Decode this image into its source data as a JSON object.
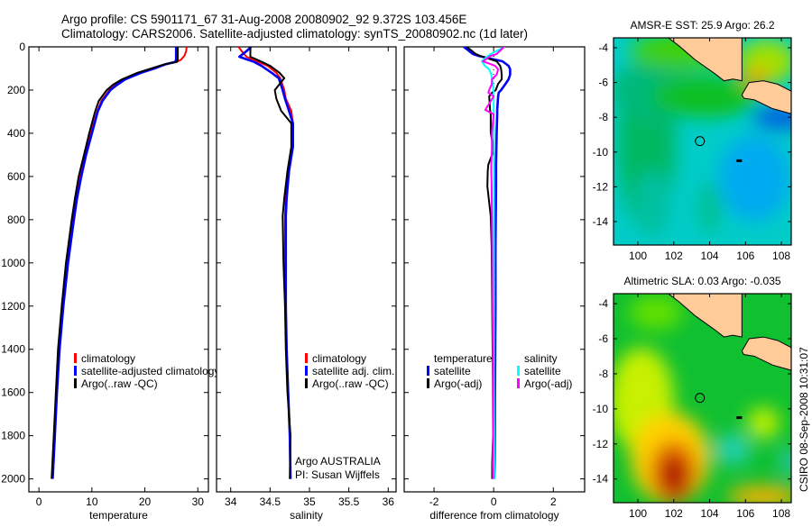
{
  "title_lines": [
    "Argo profile: CS 5901171_67 31-Aug-2008 20080902_92 9.372S 103.456E",
    "Climatology: CARS2006. Satellite-adjusted climatology: synTS_20080902.nc (1d later)"
  ],
  "side_stamp": "CSIRO 08-Sep-2008 10:31:07",
  "credit": [
    "Argo AUSTRALIA",
    "PI: Susan Wijffels"
  ],
  "chart_data": [
    {
      "type": "line",
      "id": "temperature",
      "xlabel": "temperature",
      "ylabel": "",
      "xlim": [
        -1.9,
        32
      ],
      "ylim": [
        0,
        2060
      ],
      "y_reversed": true,
      "xticks": [
        0,
        10,
        20,
        30
      ],
      "yticks": [
        0,
        200,
        400,
        600,
        800,
        1000,
        1200,
        1400,
        1600,
        1800,
        2000
      ],
      "show_ytick_labels": true,
      "depth": [
        0,
        20,
        40,
        60,
        70,
        80,
        100,
        120,
        150,
        175,
        200,
        250,
        300,
        400,
        500,
        600,
        700,
        800,
        1000,
        1200,
        1400,
        1600,
        1800,
        2000
      ],
      "series": [
        {
          "name": "climatology",
          "color": "#ff0000",
          "values": [
            27.9,
            27.8,
            27.5,
            26.8,
            26,
            24,
            21.5,
            19,
            16,
            14.5,
            13.3,
            11.8,
            11,
            9.8,
            8.7,
            7.8,
            7,
            6.4,
            5.3,
            4.4,
            3.7,
            3.3,
            2.9,
            2.6
          ]
        },
        {
          "name": "satellite-adjusted climatology",
          "color": "#0000ff",
          "values": [
            25.9,
            25.9,
            25.9,
            25.9,
            25.7,
            24,
            21.8,
            19.3,
            16.3,
            14.8,
            13.5,
            12,
            11.1,
            10,
            8.9,
            8,
            7.2,
            6.6,
            5.5,
            4.6,
            3.9,
            3.4,
            3.0,
            2.6
          ]
        },
        {
          "name": "Argo(..raw -QC)",
          "color": "#000000",
          "values": [
            26.2,
            26.2,
            26.2,
            26.2,
            26.0,
            23.8,
            21.2,
            18.6,
            15.7,
            14,
            12.8,
            11.3,
            10.6,
            9.5,
            8.5,
            7.5,
            6.8,
            6.2,
            5.1,
            4.3,
            3.6,
            3.2,
            2.8,
            2.4
          ]
        }
      ]
    },
    {
      "type": "line",
      "id": "salinity",
      "xlabel": "salinity",
      "ylabel": "",
      "xlim": [
        33.82,
        36.1
      ],
      "ylim": [
        0,
        2060
      ],
      "y_reversed": true,
      "xticks": [
        34,
        34.5,
        35,
        35.5,
        36
      ],
      "yticks": [
        0,
        200,
        400,
        600,
        800,
        1000,
        1200,
        1400,
        1600,
        1800,
        2000
      ],
      "show_ytick_labels": false,
      "depth": [
        0,
        20,
        46,
        70,
        88,
        120,
        145,
        200,
        240,
        296,
        354,
        462,
        575,
        700,
        783,
        1000,
        1200,
        1400,
        1600,
        1800,
        2000
      ],
      "series": [
        {
          "name": "climatology",
          "color": "#ff0000",
          "values": [
            34.1,
            34.14,
            34.2,
            34.35,
            34.47,
            34.58,
            34.63,
            34.68,
            34.7,
            34.77,
            34.79,
            34.79,
            34.73,
            34.7,
            34.69,
            34.69,
            34.7,
            34.71,
            34.73,
            34.75,
            34.76
          ]
        },
        {
          "name": "satellite adj. clim.",
          "color": "#0000ff",
          "values": [
            34.26,
            34.2,
            34.11,
            34.3,
            34.39,
            34.52,
            34.61,
            34.66,
            34.69,
            34.74,
            34.79,
            34.79,
            34.74,
            34.71,
            34.7,
            34.7,
            34.7,
            34.71,
            34.73,
            34.75,
            34.76
          ]
        },
        {
          "name": "Argo(..raw -QC)",
          "color": "#000000",
          "values": [
            34.25,
            34.25,
            34.25,
            34.4,
            34.5,
            34.62,
            34.68,
            34.56,
            34.58,
            34.64,
            34.77,
            34.77,
            34.72,
            34.68,
            34.66,
            34.67,
            34.69,
            34.7,
            34.72,
            34.76,
            34.75
          ]
        }
      ]
    },
    {
      "type": "line",
      "id": "difference",
      "xlabel": "difference from climatology",
      "ylabel": "",
      "xlim": [
        -3,
        3.05
      ],
      "ylim": [
        0,
        2060
      ],
      "y_reversed": true,
      "xticks": [
        -2,
        0,
        2
      ],
      "yticks": [
        0,
        200,
        400,
        600,
        800,
        1000,
        1200,
        1400,
        1600,
        1800,
        2000
      ],
      "show_ytick_labels": false,
      "legend_headers": [
        "temperature",
        "salinity"
      ],
      "depth": [
        0,
        33,
        42,
        67,
        88,
        104,
        129,
        150,
        171,
        200,
        212,
        229,
        292,
        312,
        396,
        479,
        546,
        575,
        646,
        783,
        921,
        1200,
        1500,
        1800,
        1930,
        2000
      ],
      "series": [
        {
          "name": "satellite",
          "group": "temperature",
          "color": "#0000ff",
          "values": [
            -1.0,
            -0.7,
            -0.5,
            0.3,
            0.5,
            0.55,
            0.55,
            0.5,
            0.4,
            0.25,
            0.17,
            0.15,
            0.12,
            0.12,
            0.1,
            0.09,
            0.08,
            0.08,
            0.08,
            0.07,
            0.06,
            0.06,
            0.05,
            0.04,
            0.03,
            0.02
          ]
        },
        {
          "name": "Argo(-adj)",
          "group": "temperature",
          "color": "#000000",
          "values": [
            -0.9,
            -0.6,
            -0.45,
            0.1,
            0.22,
            0.25,
            0.27,
            0.27,
            0.15,
            0.07,
            -0.05,
            -0.15,
            -0.12,
            -0.1,
            -0.1,
            0,
            -0.18,
            -0.2,
            -0.21,
            -0.1,
            -0.07,
            -0.05,
            -0.03,
            -0.02,
            -0.05,
            -0.05
          ]
        },
        {
          "name": "satellite",
          "group": "salinity",
          "color": "#00ffff",
          "values": [
            0.37,
            -0.1,
            -0.2,
            -0.4,
            -0.3,
            -0.15,
            -0.08,
            -0.05,
            -0.03,
            -0.01,
            0,
            0,
            0,
            0,
            0.01,
            0.01,
            0.01,
            0.01,
            0.01,
            0.01,
            0.01,
            0.01,
            0.01,
            0.02,
            0.02,
            0.02
          ]
        },
        {
          "name": "Argo(-adj)",
          "group": "salinity",
          "color": "#ff00ff",
          "values": [
            0.35,
            0.1,
            -0.1,
            -0.36,
            0.05,
            0.15,
            0.1,
            -0.06,
            -0.06,
            -0.15,
            -0.18,
            0,
            -0.28,
            0,
            -0.06,
            -0.06,
            -0.08,
            -0.08,
            -0.07,
            -0.06,
            -0.05,
            -0.04,
            -0.02,
            -0.02,
            -0.03,
            -0.02
          ]
        }
      ]
    },
    {
      "type": "heatmap",
      "id": "sst-map",
      "title": "AMSR-E SST: 25.9 Argo: 26.2",
      "xlim": [
        98.64,
        108.55
      ],
      "ylim": [
        -15.35,
        -3.43
      ],
      "xticks": [
        100,
        102,
        104,
        106,
        108
      ],
      "yticks": [
        -4,
        -6,
        -8,
        -10,
        -12,
        -14
      ],
      "base_color": "#00ccc8",
      "blobs": [
        {
          "lon": 100.5,
          "lat": -9.5,
          "rx": 1.6,
          "ry": 5,
          "color": "#00b860"
        },
        {
          "lon": 101,
          "lat": -6.5,
          "rx": 2.5,
          "ry": 1.8,
          "color": "#00b878"
        },
        {
          "lon": 103.8,
          "lat": -6.8,
          "rx": 3,
          "ry": 1.2,
          "color": "#10c020"
        },
        {
          "lon": 102.5,
          "lat": -4.2,
          "rx": 3,
          "ry": 1,
          "color": "#40d000"
        },
        {
          "lon": 107.2,
          "lat": -4.8,
          "rx": 1.6,
          "ry": 1.3,
          "color": "#a0e000"
        },
        {
          "lon": 106.6,
          "lat": -5.7,
          "rx": 0.8,
          "ry": 0.5,
          "color": "#f0a000"
        },
        {
          "lon": 108,
          "lat": -8,
          "rx": 1.6,
          "ry": 0.7,
          "color": "#0060e0"
        },
        {
          "lon": 106.5,
          "lat": -11.5,
          "rx": 2,
          "ry": 2.5,
          "color": "#00aaf0"
        },
        {
          "lon": 104,
          "lat": -13.2,
          "rx": 0.6,
          "ry": 1.5,
          "color": "#00c090"
        },
        {
          "lon": 100.8,
          "lat": -13,
          "rx": 1,
          "ry": 2,
          "color": "#00c0a0"
        }
      ],
      "land_color": "#ffcc99",
      "land": [
        [
          [
            101.7,
            -3.43
          ],
          [
            102.3,
            -3.9
          ],
          [
            103.2,
            -4.7
          ],
          [
            104.3,
            -5.5
          ],
          [
            104.8,
            -5.9
          ],
          [
            105.3,
            -5.8
          ],
          [
            105.8,
            -5.9
          ],
          [
            105.8,
            -3.43
          ]
        ],
        [
          [
            105.8,
            -6.7
          ],
          [
            106.2,
            -6.0
          ],
          [
            107,
            -5.9
          ],
          [
            107.8,
            -6.1
          ],
          [
            108.55,
            -6.5
          ],
          [
            108.55,
            -7.8
          ],
          [
            107.5,
            -7.5
          ],
          [
            106.5,
            -7.0
          ],
          [
            105.9,
            -6.9
          ]
        ]
      ],
      "argo_position": {
        "lon": 103.456,
        "lat": -9.372
      },
      "island": {
        "lon": 105.65,
        "lat": -10.5
      }
    },
    {
      "type": "heatmap",
      "id": "sla-map",
      "title": "Altimetric SLA: 0.03 Argo: -0.035",
      "xlim": [
        98.64,
        108.55
      ],
      "ylim": [
        -15.35,
        -3.43
      ],
      "xticks": [
        100,
        102,
        104,
        106,
        108
      ],
      "yticks": [
        -4,
        -6,
        -8,
        -10,
        -12,
        -14
      ],
      "base_color": "#10c030",
      "blobs": [
        {
          "lon": 100.2,
          "lat": -9.5,
          "rx": 1.8,
          "ry": 3,
          "color": "#c8f000"
        },
        {
          "lon": 101.8,
          "lat": -12.8,
          "rx": 2.2,
          "ry": 2.6,
          "color": "#ffd000"
        },
        {
          "lon": 102,
          "lat": -13.6,
          "rx": 1.3,
          "ry": 1.8,
          "color": "#e06000"
        },
        {
          "lon": 102,
          "lat": -13.8,
          "rx": 0.7,
          "ry": 1,
          "color": "#a80000"
        },
        {
          "lon": 105.3,
          "lat": -12.3,
          "rx": 1,
          "ry": 0.9,
          "color": "#20d0b0"
        },
        {
          "lon": 107,
          "lat": -10.8,
          "rx": 0.9,
          "ry": 0.9,
          "color": "#c0f000"
        },
        {
          "lon": 107,
          "lat": -15,
          "rx": 2,
          "ry": 0.6,
          "color": "#ffb000"
        },
        {
          "lon": 108.4,
          "lat": -13,
          "rx": 0.4,
          "ry": 0.7,
          "color": "#30c8e0"
        },
        {
          "lon": 101,
          "lat": -4.5,
          "rx": 1.5,
          "ry": 1,
          "color": "#60e000"
        }
      ],
      "land_color": "#ffcc99",
      "land": [
        [
          [
            101.7,
            -3.43
          ],
          [
            102.3,
            -3.9
          ],
          [
            103.2,
            -4.7
          ],
          [
            104.3,
            -5.5
          ],
          [
            104.8,
            -5.9
          ],
          [
            105.3,
            -5.8
          ],
          [
            105.8,
            -5.9
          ],
          [
            105.8,
            -3.43
          ]
        ],
        [
          [
            105.8,
            -6.7
          ],
          [
            106.2,
            -6.0
          ],
          [
            107,
            -5.9
          ],
          [
            107.8,
            -6.1
          ],
          [
            108.55,
            -6.5
          ],
          [
            108.55,
            -7.8
          ],
          [
            107.5,
            -7.5
          ],
          [
            106.5,
            -7.0
          ],
          [
            105.9,
            -6.9
          ]
        ]
      ],
      "argo_position": {
        "lon": 103.456,
        "lat": -9.372
      },
      "island": {
        "lon": 105.65,
        "lat": -10.5
      }
    }
  ]
}
